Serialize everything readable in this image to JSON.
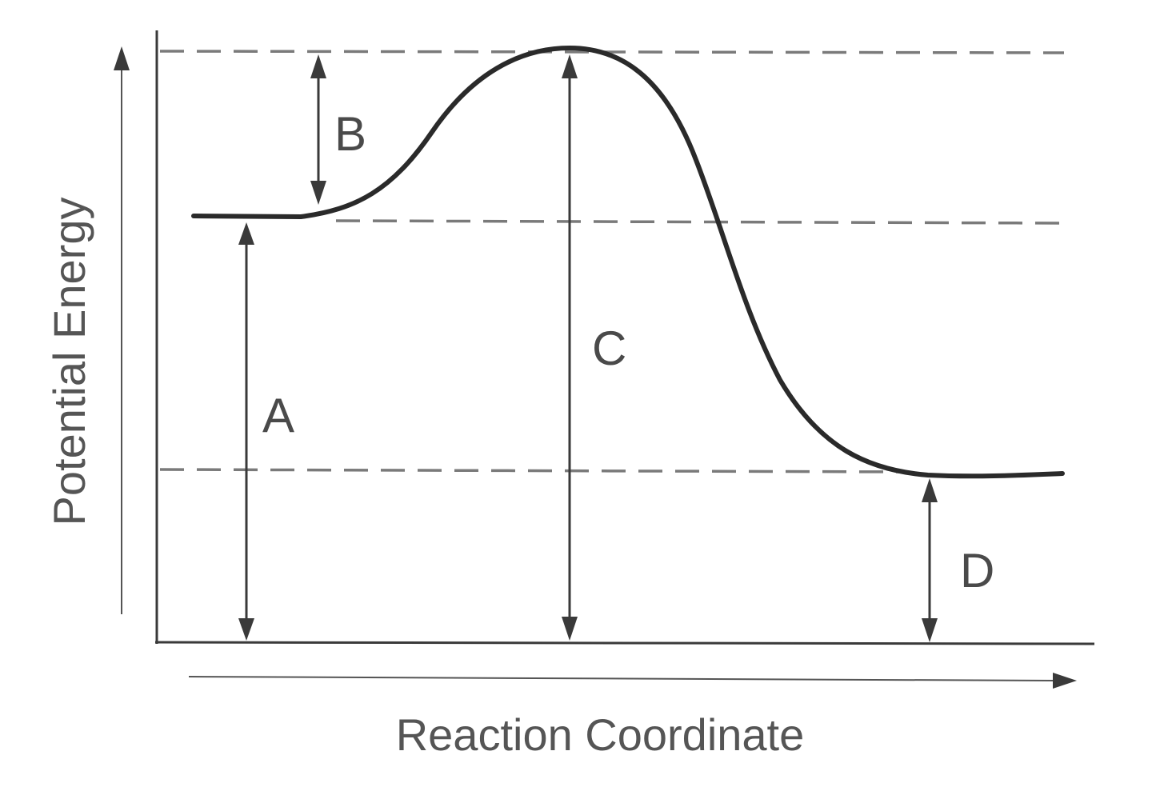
{
  "diagram": {
    "x_axis_label": "Reaction Coordinate",
    "y_axis_label": "Potential Energy",
    "labels": {
      "a": "A",
      "b": "B",
      "c": "C",
      "d": "D"
    }
  }
}
